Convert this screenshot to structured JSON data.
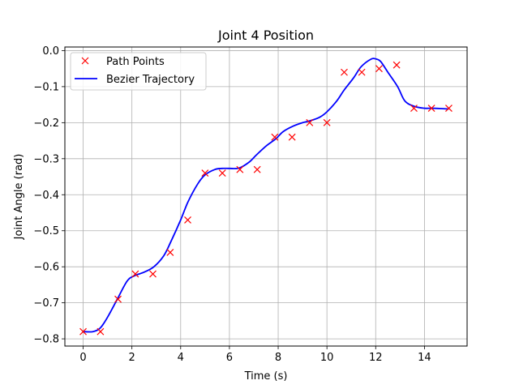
{
  "chart_data": {
    "type": "line",
    "title": "Joint 4 Position",
    "xlabel": "Time (s)",
    "ylabel": "Joint Angle (rad)",
    "xlim": [
      -0.75,
      15.75
    ],
    "ylim": [
      -0.82,
      0.01
    ],
    "xticks": [
      0,
      2,
      4,
      6,
      8,
      10,
      12,
      14
    ],
    "xtick_labels": [
      "0",
      "2",
      "4",
      "6",
      "8",
      "10",
      "12",
      "14"
    ],
    "yticks": [
      -0.8,
      -0.7,
      -0.6,
      -0.5,
      -0.4,
      -0.3,
      -0.2,
      -0.1,
      0.0
    ],
    "ytick_labels": [
      "−0.8",
      "−0.7",
      "−0.6",
      "−0.5",
      "−0.4",
      "−0.3",
      "−0.2",
      "−0.1",
      "0.0"
    ],
    "grid": true,
    "legend_position": "top-left",
    "series": [
      {
        "name": "Path Points",
        "kind": "markers",
        "marker": "x",
        "color": "#ff0000",
        "x": [
          0.0,
          0.71,
          1.43,
          2.14,
          2.86,
          3.57,
          4.29,
          5.0,
          5.71,
          6.43,
          7.14,
          7.86,
          8.57,
          9.29,
          10.0,
          10.71,
          11.43,
          12.14,
          12.86,
          13.57,
          14.29,
          15.0
        ],
        "y": [
          -0.78,
          -0.78,
          -0.69,
          -0.62,
          -0.62,
          -0.56,
          -0.47,
          -0.34,
          -0.34,
          -0.33,
          -0.33,
          -0.24,
          -0.24,
          -0.2,
          -0.2,
          -0.06,
          -0.06,
          -0.05,
          -0.04,
          -0.16,
          -0.16,
          -0.16
        ]
      },
      {
        "name": "Bezier Trajectory",
        "kind": "line",
        "color": "#0000ff",
        "x": [
          0.0,
          0.4,
          0.7,
          1.0,
          1.4,
          1.8,
          2.1,
          2.5,
          2.9,
          3.3,
          3.6,
          4.0,
          4.3,
          4.7,
          5.0,
          5.4,
          5.7,
          6.0,
          6.4,
          6.8,
          7.1,
          7.5,
          7.9,
          8.2,
          8.6,
          9.0,
          9.3,
          9.7,
          10.0,
          10.4,
          10.7,
          11.1,
          11.4,
          11.8,
          12.0,
          12.2,
          12.5,
          12.9,
          13.2,
          13.6,
          14.0,
          14.3,
          14.7,
          15.0
        ],
        "y": [
          -0.78,
          -0.78,
          -0.77,
          -0.74,
          -0.69,
          -0.64,
          -0.625,
          -0.615,
          -0.6,
          -0.57,
          -0.53,
          -0.47,
          -0.42,
          -0.37,
          -0.345,
          -0.33,
          -0.327,
          -0.327,
          -0.326,
          -0.31,
          -0.29,
          -0.265,
          -0.245,
          -0.225,
          -0.21,
          -0.2,
          -0.195,
          -0.185,
          -0.17,
          -0.14,
          -0.11,
          -0.075,
          -0.045,
          -0.024,
          -0.023,
          -0.03,
          -0.06,
          -0.1,
          -0.14,
          -0.155,
          -0.16,
          -0.16,
          -0.161,
          -0.162
        ]
      }
    ]
  }
}
